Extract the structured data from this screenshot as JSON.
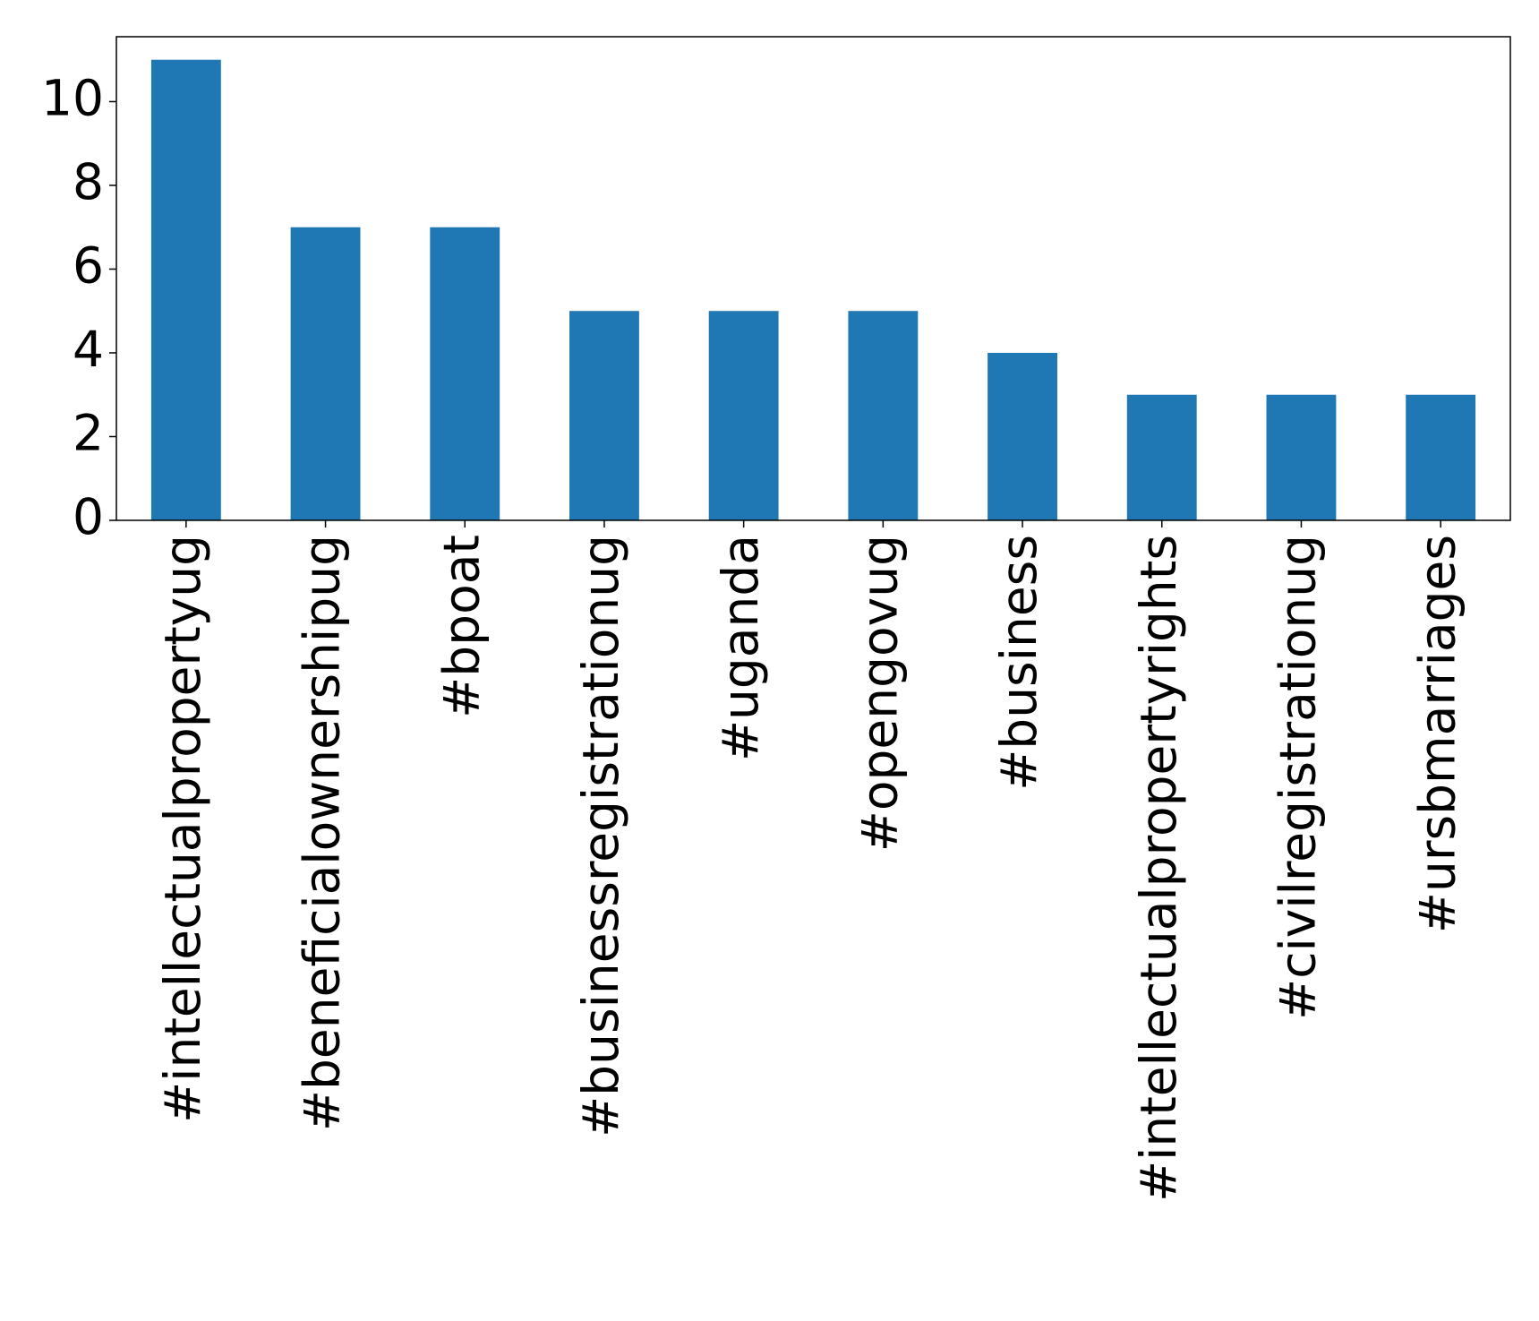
{
  "chart_data": {
    "type": "bar",
    "categories": [
      "#intellectualpropertyug",
      "#beneficialownershipug",
      "#bpoat",
      "#businessregistrationug",
      "#uganda",
      "#opengovug",
      "#business",
      "#intellectualpropertyrights",
      "#civilregistrationug",
      "#ursbmarriages"
    ],
    "values": [
      11,
      7,
      7,
      5,
      5,
      5,
      4,
      3,
      3,
      3
    ],
    "color": "#1f77b4",
    "ylim": [
      0,
      11.55
    ],
    "yticks": [
      0,
      2,
      4,
      6,
      8,
      10
    ],
    "grid": false
  }
}
